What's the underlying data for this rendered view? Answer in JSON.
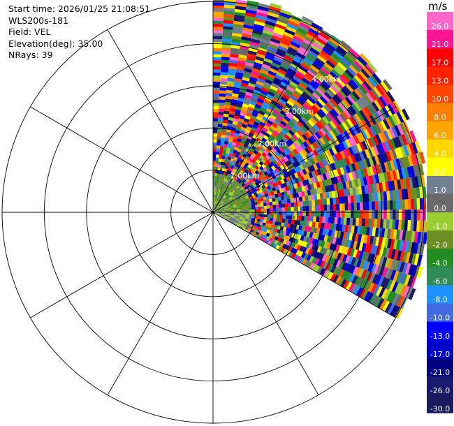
{
  "header": {
    "start_time": "Start time: 2026/01/25 21:08:51",
    "instrument": "WLS200s-181",
    "field": "Field: VEL",
    "elevation": "Elevation(deg): 35.00",
    "nrays": "NRays: 39"
  },
  "chart_data": {
    "type": "ppi-polar-heatmap",
    "field": "VEL",
    "units": "m/s",
    "nrays": 39,
    "elevation_deg": 35.0,
    "azimuth_sector_deg": [
      0,
      120
    ],
    "range_rings_labels": [
      "1.00km",
      "2.00km",
      "3.00km",
      "4.00km"
    ],
    "colorbar": {
      "unit_label": "m/s",
      "levels": [
        "26.0",
        "21.0",
        "17.0",
        "13.0",
        "10.0",
        "8.0",
        "6.0",
        "4.0",
        "2.0",
        "1.0",
        "0.0",
        "-1.0",
        "-2.0",
        "-4.0",
        "-6.0",
        "-8.0",
        "-10.0",
        "-13.0",
        "-17.0",
        "-21.0",
        "-26.0",
        "-30.0"
      ],
      "colors": [
        "#ff66cc",
        "#ff1493",
        "#ff0000",
        "#ff2200",
        "#ff4500",
        "#ff7f00",
        "#ffa500",
        "#ffd700",
        "#ffff00",
        "#708090",
        "#696969",
        "#9acd32",
        "#6b8e23",
        "#228b22",
        "#2e8b57",
        "#1e90ff",
        "#4169e1",
        "#0000ff",
        "#0000cd",
        "#000080",
        "#191970",
        "#1a1a5e"
      ]
    }
  }
}
